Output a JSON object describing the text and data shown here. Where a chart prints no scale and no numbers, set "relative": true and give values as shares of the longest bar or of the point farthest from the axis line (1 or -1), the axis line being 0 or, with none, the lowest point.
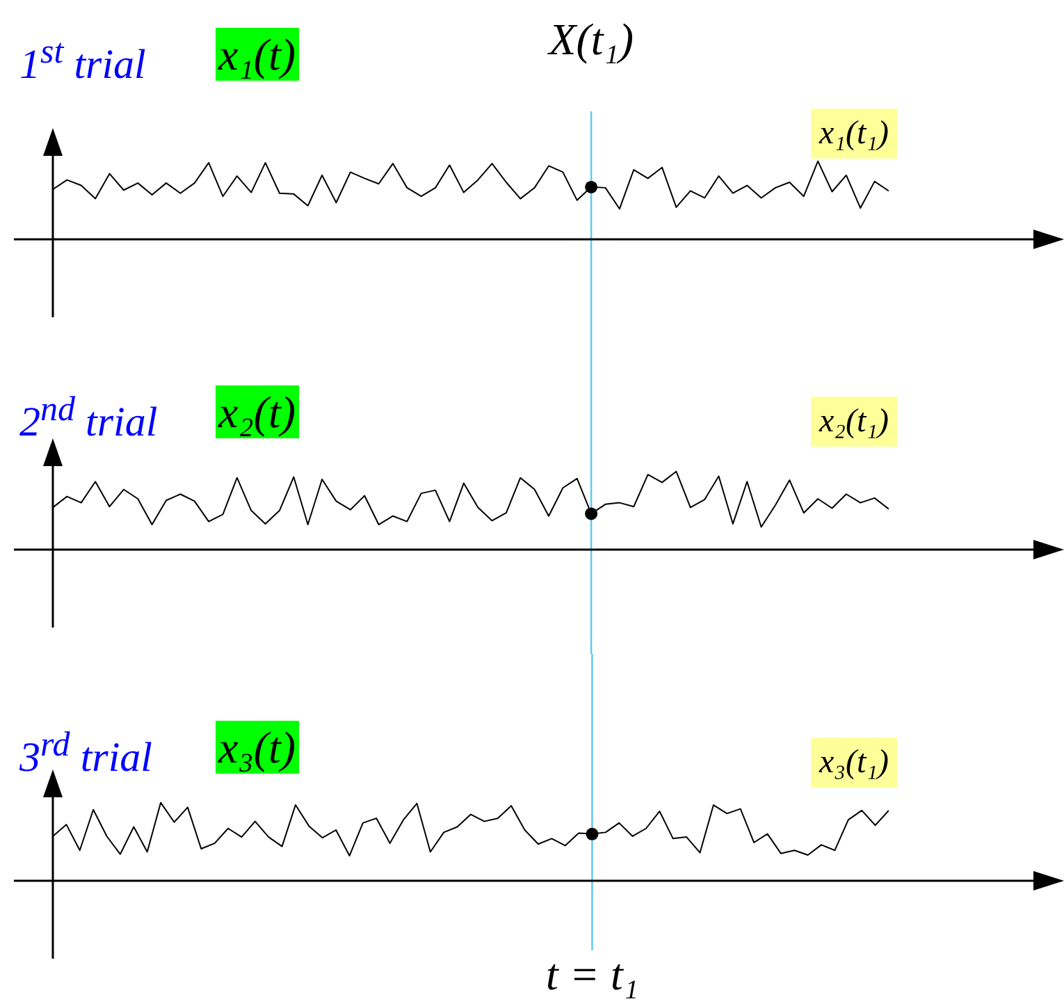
{
  "chart_data": [
    {
      "type": "line",
      "title": "1$^{st}$ trial",
      "relative": true,
      "categories": [
        null,
        null,
        null,
        null,
        null,
        null,
        null,
        null,
        null,
        null,
        null,
        null,
        null,
        null,
        null,
        null,
        null,
        null,
        null,
        null,
        null,
        null,
        null,
        null,
        null,
        null,
        null,
        null,
        null,
        null,
        null,
        null,
        null,
        null,
        null,
        null,
        null,
        null,
        null,
        null,
        null,
        null,
        null,
        null,
        null,
        null,
        null,
        null,
        null,
        null,
        null,
        null,
        null,
        null,
        null,
        null,
        null,
        null,
        null,
        null
      ],
      "series": [
        {
          "name": "x₁(t)",
          "color": "#000000",
          "values": [
            0.64,
            0.76,
            0.69,
            0.52,
            0.84,
            0.63,
            0.72,
            0.57,
            0.72,
            0.59,
            0.72,
            0.98,
            0.55,
            0.81,
            0.6,
            0.98,
            0.59,
            0.58,
            0.43,
            0.82,
            0.47,
            0.86,
            0.78,
            0.71,
            0.97,
            0.66,
            0.55,
            0.66,
            0.95,
            0.6,
            0.76,
            0.97,
            0.73,
            0.52,
            0.66,
            0.94,
            0.86,
            0.5,
            0.67,
            0.66,
            0.39,
            0.89,
            0.78,
            0.92,
            0.41,
            0.62,
            0.53,
            0.81,
            0.59,
            0.69,
            0.53,
            0.66,
            0.73,
            0.55,
            1,
            0.61,
            0.82,
            0.4,
            0.74,
            0.62
          ]
        }
      ],
      "annotations": [
        "x₁(t₁)",
        "X(t₁)"
      ]
    },
    {
      "type": "line",
      "title": "2$^{nd}$ trial",
      "relative": true,
      "categories": [
        null,
        null,
        null,
        null,
        null,
        null,
        null,
        null,
        null,
        null,
        null,
        null,
        null,
        null,
        null,
        null,
        null,
        null,
        null,
        null,
        null,
        null,
        null,
        null,
        null,
        null,
        null,
        null,
        null,
        null,
        null,
        null,
        null,
        null,
        null,
        null,
        null,
        null,
        null,
        null,
        null,
        null,
        null,
        null,
        null,
        null,
        null,
        null,
        null,
        null,
        null,
        null,
        null,
        null,
        null,
        null,
        null,
        null,
        null,
        null
      ],
      "series": [
        {
          "name": "x₂(t)",
          "color": "#000000",
          "values": [
            0.54,
            0.68,
            0.6,
            0.87,
            0.55,
            0.77,
            0.65,
            0.32,
            0.63,
            0.71,
            0.62,
            0.36,
            0.45,
            0.92,
            0.5,
            0.33,
            0.5,
            0.93,
            0.32,
            0.9,
            0.62,
            0.51,
            0.69,
            0.32,
            0.43,
            0.36,
            0.72,
            0.76,
            0.36,
            0.85,
            0.54,
            0.37,
            0.47,
            0.92,
            0.77,
            0.43,
            0.79,
            0.91,
            0.46,
            0.58,
            0.6,
            0.55,
            0.96,
            0.86,
            1,
            0.54,
            0.64,
            0.94,
            0.33,
            0.87,
            0.29,
            0.57,
            0.89,
            0.47,
            0.65,
            0.53,
            0.71,
            0.6,
            0.66,
            0.52
          ]
        }
      ],
      "annotations": [
        "x₂(t₁)"
      ]
    },
    {
      "type": "line",
      "title": "3$^{rd}$ trial",
      "relative": true,
      "categories": [
        null,
        null,
        null,
        null,
        null,
        null,
        null,
        null,
        null,
        null,
        null,
        null,
        null,
        null,
        null,
        null,
        null,
        null,
        null,
        null,
        null,
        null,
        null,
        null,
        null,
        null,
        null,
        null,
        null,
        null,
        null,
        null,
        null,
        null,
        null,
        null,
        null,
        null,
        null,
        null,
        null,
        null,
        null,
        null,
        null,
        null,
        null,
        null,
        null,
        null,
        null,
        null,
        null,
        null,
        null,
        null,
        null,
        null,
        null,
        null,
        null,
        null,
        null
      ],
      "series": [
        {
          "name": "x₃(t)",
          "color": "#000000",
          "values": [
            0.57,
            0.72,
            0.39,
            0.91,
            0.57,
            0.34,
            0.69,
            0.37,
            1,
            0.75,
            0.94,
            0.41,
            0.48,
            0.67,
            0.56,
            0.76,
            0.56,
            0.44,
            0.97,
            0.7,
            0.55,
            0.65,
            0.32,
            0.74,
            0.8,
            0.48,
            0.78,
            0.99,
            0.37,
            0.62,
            0.69,
            0.85,
            0.76,
            0.8,
            0.96,
            0.65,
            0.47,
            0.54,
            0.45,
            0.61,
            0.6,
            0.62,
            0.74,
            0.57,
            0.67,
            0.89,
            0.54,
            0.56,
            0.36,
            0.97,
            0.86,
            0.92,
            0.49,
            0.6,
            0.35,
            0.39,
            0.33,
            0.46,
            0.39,
            0.78,
            0.9,
            0.71,
            0.9
          ]
        }
      ],
      "annotations": [
        "x₃(t₁)",
        "t = t₁"
      ]
    }
  ]
}
